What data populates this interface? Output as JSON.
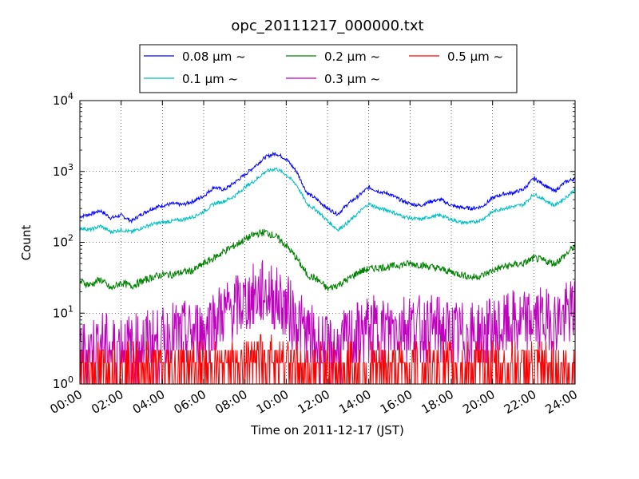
{
  "chart_data": {
    "type": "line",
    "title": "opc_20111217_000000.txt",
    "xlabel": "Time on 2011-12-17 (JST)",
    "ylabel": "Count",
    "x_ticks": [
      "00:00",
      "02:00",
      "04:00",
      "06:00",
      "08:00",
      "10:00",
      "12:00",
      "14:00",
      "16:00",
      "18:00",
      "20:00",
      "22:00",
      "24:00"
    ],
    "xlim_hours": [
      0,
      24
    ],
    "yscale": "log",
    "ylim": [
      1,
      10000
    ],
    "y_ticks": [
      {
        "base": "10",
        "exp": "0"
      },
      {
        "base": "10",
        "exp": "1"
      },
      {
        "base": "10",
        "exp": "2"
      },
      {
        "base": "10",
        "exp": "3"
      },
      {
        "base": "10",
        "exp": "4"
      }
    ],
    "grid": true,
    "legend_position": "top-center, above plot",
    "series": [
      {
        "name": "0.08 μm ~",
        "color": "#0000ff",
        "x": [
          0,
          0.5,
          1,
          1.5,
          2,
          2.5,
          3,
          3.5,
          4,
          4.5,
          5,
          5.5,
          6,
          6.5,
          7,
          7.5,
          8,
          8.5,
          9,
          9.5,
          10,
          10.5,
          11,
          11.5,
          12,
          12.5,
          13,
          13.5,
          14,
          14.5,
          15,
          15.5,
          16,
          16.5,
          17,
          17.5,
          18,
          18.5,
          19,
          19.5,
          20,
          20.5,
          21,
          21.5,
          22,
          22.5,
          23,
          23.5,
          24
        ],
        "values": [
          230,
          250,
          280,
          220,
          240,
          200,
          250,
          300,
          330,
          350,
          340,
          380,
          450,
          600,
          550,
          700,
          900,
          1200,
          1600,
          1800,
          1500,
          1000,
          500,
          400,
          300,
          250,
          350,
          450,
          600,
          520,
          480,
          400,
          350,
          330,
          380,
          400,
          330,
          310,
          300,
          320,
          420,
          480,
          500,
          560,
          800,
          650,
          520,
          700,
          800
        ]
      },
      {
        "name": "0.1 μm ~",
        "color": "#00bfbf",
        "x": [
          0,
          0.5,
          1,
          1.5,
          2,
          2.5,
          3,
          3.5,
          4,
          4.5,
          5,
          5.5,
          6,
          6.5,
          7,
          7.5,
          8,
          8.5,
          9,
          9.5,
          10,
          10.5,
          11,
          11.5,
          12,
          12.5,
          13,
          13.5,
          14,
          14.5,
          15,
          15.5,
          16,
          16.5,
          17,
          17.5,
          18,
          18.5,
          19,
          19.5,
          20,
          20.5,
          21,
          21.5,
          22,
          22.5,
          23,
          23.5,
          24
        ],
        "values": [
          160,
          150,
          170,
          140,
          150,
          140,
          160,
          180,
          190,
          200,
          210,
          230,
          270,
          350,
          380,
          450,
          600,
          750,
          1000,
          1100,
          900,
          650,
          350,
          280,
          200,
          150,
          190,
          260,
          350,
          300,
          280,
          240,
          220,
          210,
          230,
          240,
          210,
          190,
          190,
          210,
          270,
          300,
          320,
          340,
          480,
          400,
          330,
          420,
          550
        ]
      },
      {
        "name": "0.2 μm ~",
        "color": "#008000",
        "x": [
          0,
          0.5,
          1,
          1.5,
          2,
          2.5,
          3,
          3.5,
          4,
          4.5,
          5,
          5.5,
          6,
          6.5,
          7,
          7.5,
          8,
          8.5,
          9,
          9.5,
          10,
          10.5,
          11,
          11.5,
          12,
          12.5,
          13,
          13.5,
          14,
          14.5,
          15,
          15.5,
          16,
          16.5,
          17,
          17.5,
          18,
          18.5,
          19,
          19.5,
          20,
          20.5,
          21,
          21.5,
          22,
          22.5,
          23,
          23.5,
          24
        ],
        "values": [
          28,
          25,
          30,
          22,
          27,
          24,
          28,
          32,
          35,
          35,
          38,
          40,
          50,
          60,
          75,
          90,
          110,
          130,
          140,
          120,
          90,
          60,
          35,
          30,
          22,
          25,
          30,
          38,
          42,
          44,
          45,
          48,
          50,
          48,
          45,
          42,
          38,
          35,
          32,
          34,
          40,
          45,
          48,
          50,
          60,
          55,
          50,
          65,
          90
        ]
      },
      {
        "name": "0.3 μm ~",
        "color": "#bf00bf",
        "x": [
          0,
          0.5,
          1,
          1.5,
          2,
          2.5,
          3,
          3.5,
          4,
          4.5,
          5,
          5.5,
          6,
          6.5,
          7,
          7.5,
          8,
          8.5,
          9,
          9.5,
          10,
          10.5,
          11,
          11.5,
          12,
          12.5,
          13,
          13.5,
          14,
          14.5,
          15,
          15.5,
          16,
          16.5,
          17,
          17.5,
          18,
          18.5,
          19,
          19.5,
          20,
          20.5,
          21,
          21.5,
          22,
          22.5,
          23,
          23.5,
          24
        ],
        "values": [
          3,
          3,
          4,
          3,
          4,
          3,
          4,
          4,
          4,
          5,
          5,
          5,
          6,
          8,
          10,
          12,
          14,
          18,
          20,
          16,
          12,
          8,
          5,
          4,
          3,
          3,
          4,
          5,
          6,
          6,
          6,
          7,
          7,
          6,
          6,
          6,
          5,
          5,
          5,
          5,
          6,
          6,
          7,
          7,
          8,
          8,
          7,
          9,
          11
        ]
      },
      {
        "name": "0.5 μm ~",
        "color": "#ff0000",
        "x": [
          0,
          1,
          2,
          3,
          4,
          5,
          6,
          7,
          8,
          9,
          10,
          11,
          12,
          13,
          14,
          15,
          16,
          17,
          18,
          19,
          20,
          21,
          22,
          23,
          24
        ],
        "values": [
          1,
          1,
          1,
          1,
          1,
          1,
          1,
          1.5,
          2,
          2,
          1.5,
          1,
          1,
          1,
          1.2,
          1.2,
          1.2,
          1.2,
          1,
          1,
          1,
          1,
          1,
          1.2,
          1.5
        ]
      }
    ]
  }
}
